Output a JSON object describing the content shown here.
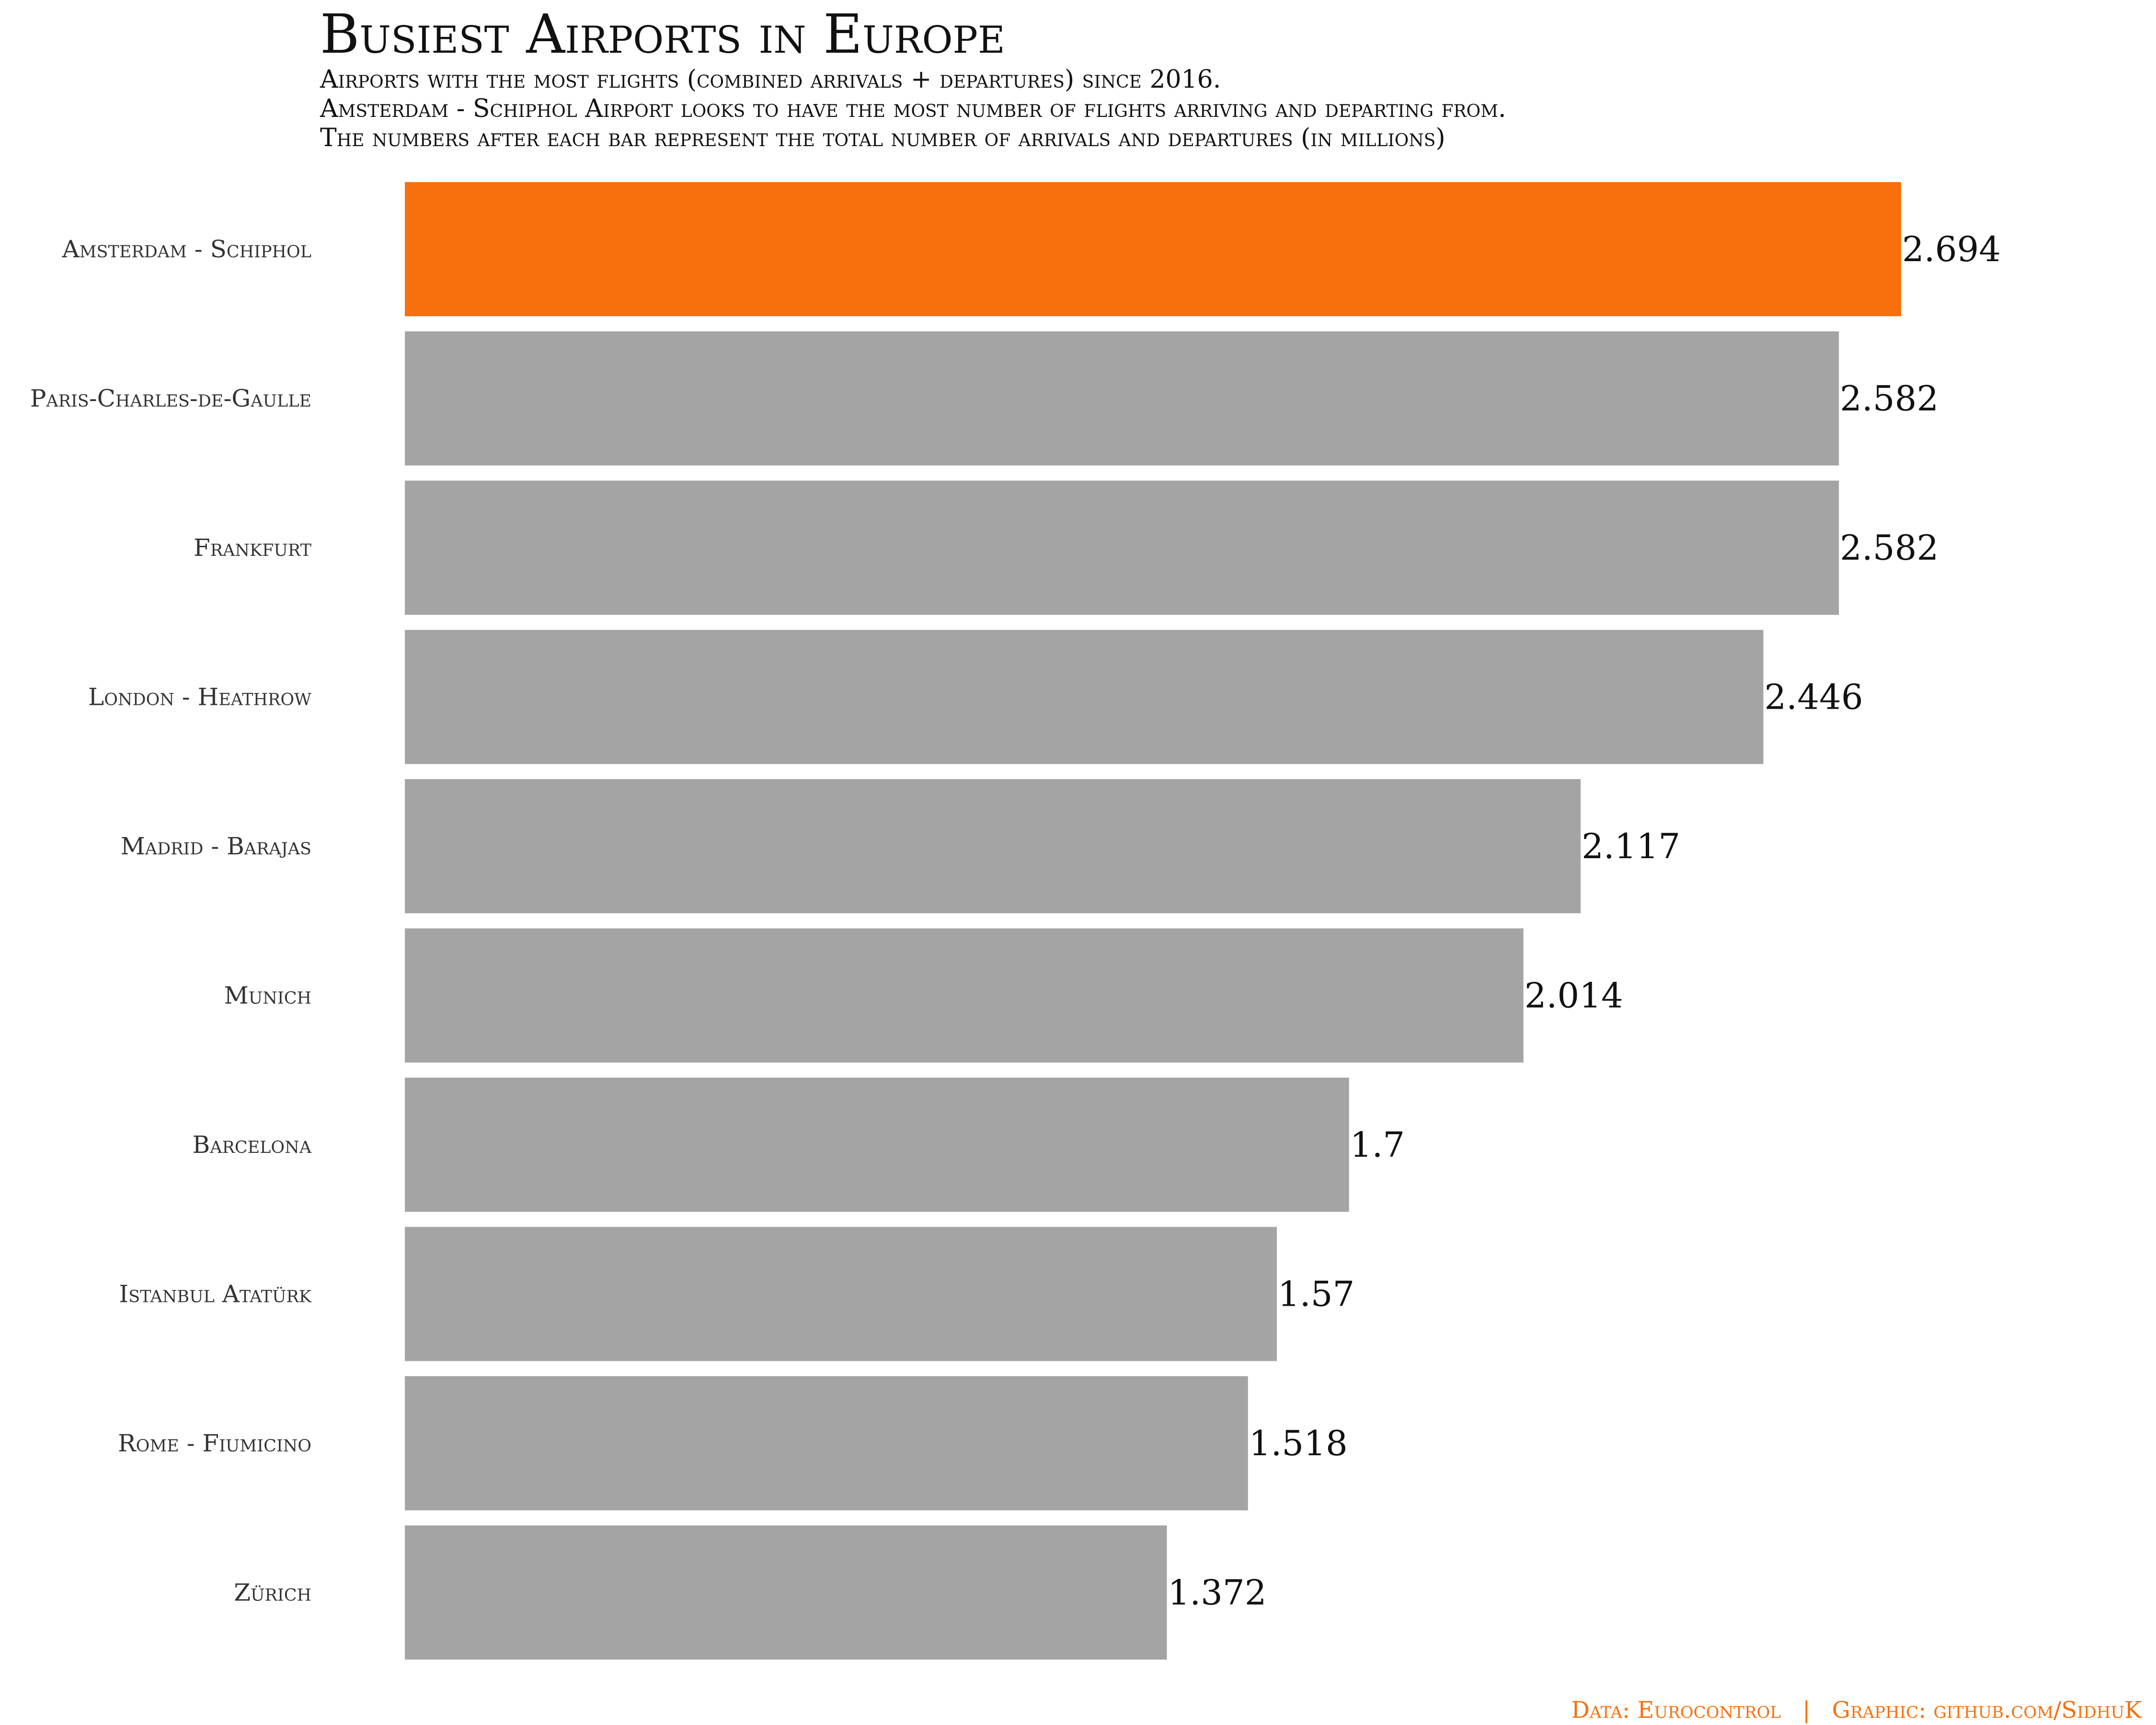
{
  "chart_data": {
    "type": "bar",
    "orientation": "horizontal",
    "title": "Busiest Airports in Europe",
    "subtitle": [
      "Airports with the most flights (combined arrivals + departures) since 2016.",
      "Amsterdam - Schiphol Airport looks to have the most number of flights arriving and departing from.",
      "The numbers after each bar represent the total number of arrivals and departures (in millions)"
    ],
    "categories": [
      "Amsterdam - Schiphol",
      "Paris-Charles-de-Gaulle",
      "Frankfurt",
      "London - Heathrow",
      "Madrid - Barajas",
      "Munich",
      "Barcelona",
      "Istanbul Atatürk",
      "Rome - Fiumicino",
      "Zürich"
    ],
    "values": [
      2.694,
      2.582,
      2.582,
      2.446,
      2.117,
      2.014,
      1.7,
      1.57,
      1.518,
      1.372
    ],
    "value_labels": [
      "2.694",
      "2.582",
      "2.582",
      "2.446",
      "2.117",
      "2.014",
      "1.7",
      "1.57",
      "1.518",
      "1.372"
    ],
    "xlim": [
      0,
      2.694
    ],
    "highlight_index": 0,
    "colors": {
      "highlight": "#f7700b",
      "default": "#a4a4a4"
    },
    "grid": false,
    "legend": "none",
    "caption": {
      "data": "Data: Eurocontrol",
      "separator": "|",
      "graphic": "Graphic: github.com/SidhuK"
    }
  }
}
